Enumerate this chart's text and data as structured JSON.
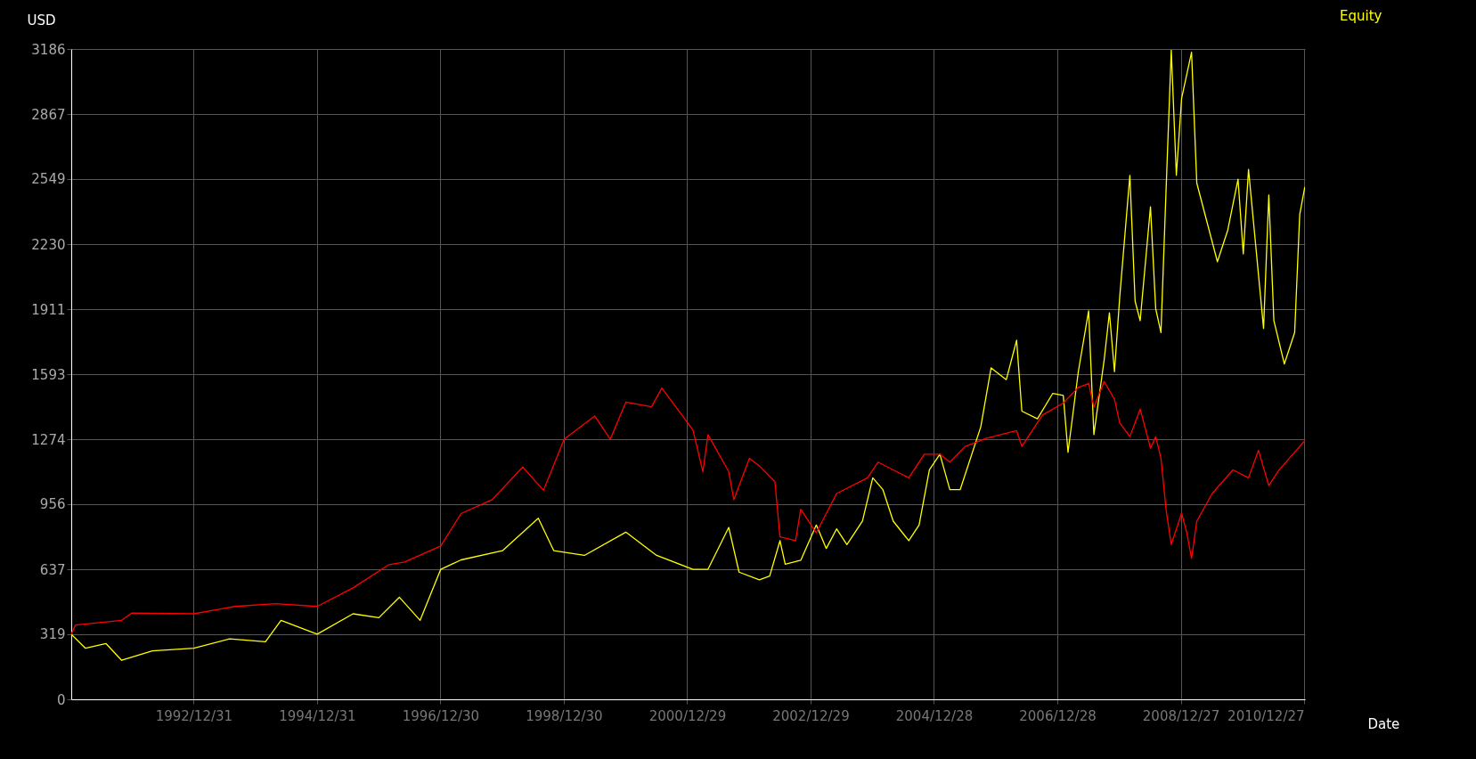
{
  "chart_data": {
    "type": "line",
    "xlabel": "Date",
    "ylabel": "USD",
    "xlim": [
      "1991-01-07",
      "2011-01-01"
    ],
    "xticks": [
      {
        "value": "1992-12-31",
        "label": "1992/12/31"
      },
      {
        "value": "1994-12-31",
        "label": "1994/12/31"
      },
      {
        "value": "1996-12-30",
        "label": "1996/12/30"
      },
      {
        "value": "1998-12-30",
        "label": "1998/12/30"
      },
      {
        "value": "2000-12-29",
        "label": "2000/12/29"
      },
      {
        "value": "2002-12-29",
        "label": "2002/12/29"
      },
      {
        "value": "2004-12-28",
        "label": "2004/12/28"
      },
      {
        "value": "2006-12-28",
        "label": "2006/12/28"
      },
      {
        "value": "2008-12-27",
        "label": "2008/12/27"
      },
      {
        "value": "2010-12-27",
        "label": "2010/12/27"
      }
    ],
    "ylim": [
      0,
      3186
    ],
    "yticks": [
      0,
      319,
      637,
      956,
      1274,
      1593,
      1911,
      2230,
      2549,
      2867,
      3186
    ],
    "grid": true,
    "legend": "top right",
    "series": [
      {
        "name": "Equity",
        "color": "#ffff00",
        "x": [
          "1991-01-07",
          "1991-04",
          "1991-08",
          "1991-11",
          "1992-05",
          "1993-01",
          "1993-08",
          "1994-03",
          "1994-06",
          "1995-01",
          "1995-08",
          "1996-01",
          "1996-05",
          "1996-09",
          "1997-01",
          "1997-05",
          "1998-01",
          "1998-08",
          "1998-11",
          "1999-05",
          "2000-01",
          "2000-07",
          "2001-02",
          "2001-05",
          "2001-09",
          "2001-11",
          "2002-03",
          "2002-05",
          "2002-07",
          "2002-08",
          "2002-11",
          "2003-02",
          "2003-04",
          "2003-06",
          "2003-08",
          "2003-11",
          "2004-01",
          "2004-03",
          "2004-05",
          "2004-08",
          "2004-10",
          "2004-12",
          "2005-02",
          "2005-04",
          "2005-06",
          "2005-10",
          "2005-12",
          "2006-03",
          "2006-05",
          "2006-06",
          "2006-09",
          "2006-12",
          "2007-02",
          "2007-03",
          "2007-05",
          "2007-07",
          "2007-08",
          "2007-10",
          "2007-11",
          "2007-12",
          "2008-01",
          "2008-03",
          "2008-04",
          "2008-05",
          "2008-07",
          "2008-08",
          "2008-09",
          "2008-10",
          "2008-11",
          "2008-12",
          "2009-01",
          "2009-03",
          "2009-04",
          "2009-06",
          "2009-08",
          "2009-10",
          "2009-12",
          "2010-01",
          "2010-02",
          "2010-05",
          "2010-06",
          "2010-07",
          "2010-09",
          "2010-11",
          "2010-12",
          "2010-12-31"
        ],
        "values": [
          319,
          250,
          273,
          191,
          237,
          250,
          296,
          282,
          387,
          319,
          419,
          400,
          500,
          387,
          637,
          683,
          728,
          887,
          728,
          705,
          819,
          705,
          637,
          637,
          842,
          623,
          585,
          604,
          777,
          662,
          681,
          854,
          739,
          835,
          758,
          873,
          1085,
          1027,
          873,
          777,
          854,
          1124,
          1201,
          1027,
          1027,
          1335,
          1624,
          1566,
          1759,
          1412,
          1374,
          1499,
          1489,
          1210,
          1605,
          1903,
          1297,
          1663,
          1894,
          1605,
          1971,
          2567,
          1951,
          1855,
          2413,
          1913,
          1797,
          2490,
          3180,
          2567,
          2943,
          3170,
          2529,
          2336,
          2144,
          2298,
          2548,
          2182,
          2596,
          1817,
          2471,
          1855,
          1643,
          1797,
          2375,
          2510
        ]
      },
      {
        "color": "#ff0000",
        "x": [
          "1991-01-07",
          "1991-02",
          "1991-11",
          "1992-01",
          "1993-01",
          "1993-09",
          "1994-05",
          "1995-01",
          "1995-08",
          "1996-03",
          "1996-06",
          "1997-01",
          "1997-05",
          "1997-11",
          "1998-05",
          "1998-09",
          "1999-01",
          "1999-07",
          "1999-10",
          "2000-01",
          "2000-06",
          "2000-08",
          "2001-02",
          "2001-04",
          "2001-05",
          "2001-09",
          "2001-10",
          "2002-01",
          "2002-03",
          "2002-06",
          "2002-07",
          "2002-10",
          "2002-11",
          "2003-01",
          "2003-02",
          "2003-06",
          "2003-12",
          "2004-02",
          "2004-05",
          "2004-08",
          "2004-11",
          "2005-02",
          "2005-04",
          "2005-07",
          "2005-11",
          "2006-05",
          "2006-06",
          "2006-10",
          "2007-02",
          "2007-05",
          "2007-07",
          "2007-08",
          "2007-10",
          "2007-12",
          "2008-01",
          "2008-03",
          "2008-05",
          "2008-07",
          "2008-08",
          "2008-09",
          "2008-10",
          "2008-11",
          "2009-01",
          "2009-02",
          "2009-03",
          "2009-04",
          "2009-07",
          "2009-11",
          "2010-02",
          "2010-04",
          "2010-06",
          "2010-08",
          "2010-10",
          "2011-01-01"
        ],
        "values": [
          319,
          364,
          387,
          423,
          419,
          455,
          469,
          455,
          546,
          660,
          673,
          751,
          910,
          978,
          1138,
          1024,
          1274,
          1388,
          1274,
          1456,
          1433,
          1525,
          1320,
          1115,
          1297,
          1115,
          978,
          1181,
          1143,
          1066,
          796,
          777,
          931,
          854,
          816,
          1008,
          1085,
          1162,
          1124,
          1085,
          1201,
          1201,
          1162,
          1239,
          1278,
          1316,
          1239,
          1393,
          1451,
          1528,
          1547,
          1432,
          1557,
          1470,
          1355,
          1287,
          1422,
          1230,
          1287,
          1181,
          931,
          758,
          912,
          816,
          690,
          873,
          1008,
          1124,
          1085,
          1220,
          1047,
          1124,
          1181,
          1268
        ]
      }
    ]
  }
}
